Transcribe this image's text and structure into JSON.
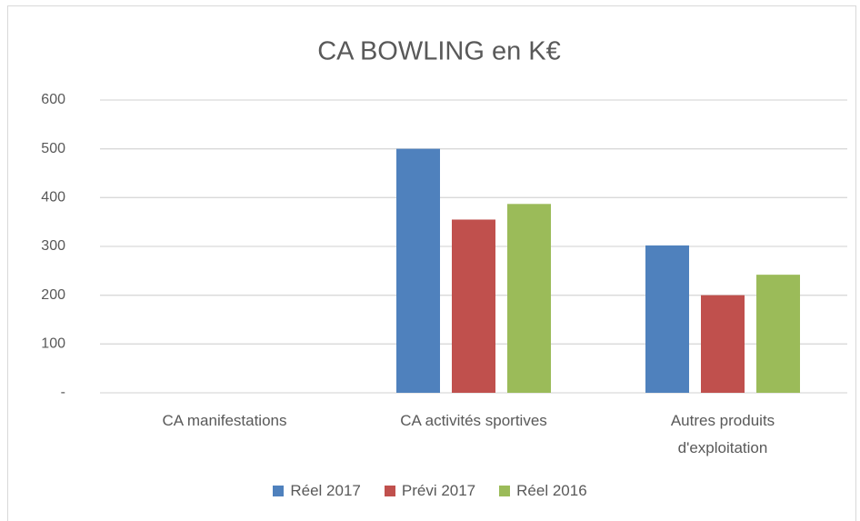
{
  "chart_data": {
    "type": "bar",
    "title": "CA BOWLING en K€",
    "categories": [
      "CA  manifestations",
      "CA activités sportives",
      "Autres produits d'exploitation"
    ],
    "series": [
      {
        "name": "Réel 2017",
        "color": "#4f81bd",
        "values": [
          0,
          500,
          302
        ]
      },
      {
        "name": "Prévi 2017",
        "color": "#c0504d",
        "values": [
          0,
          355,
          200
        ]
      },
      {
        "name": "Réel 2016",
        "color": "#9bbb59",
        "values": [
          0,
          387,
          242
        ]
      }
    ],
    "ylim": [
      0,
      600
    ],
    "yticks": [
      {
        "value": 0,
        "label": "-"
      },
      100,
      200,
      300,
      400,
      500,
      600
    ],
    "grid": true,
    "legend": "bottom"
  }
}
